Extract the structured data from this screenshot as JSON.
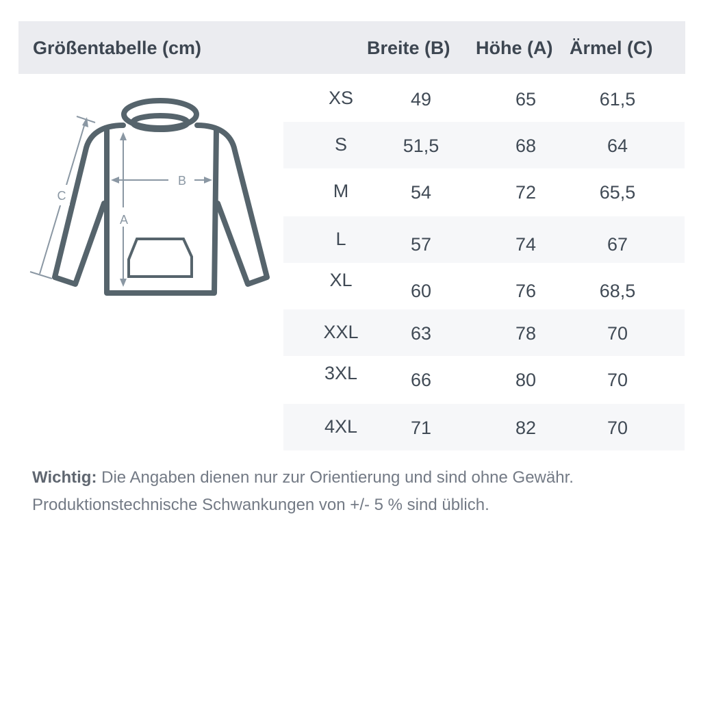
{
  "header": {
    "title": "Größentabelle (cm)",
    "columns": [
      "Breite (B)",
      "Höhe (A)",
      "Ärmel (C)"
    ]
  },
  "rows": [
    {
      "size": "XS",
      "breite": "49",
      "hoehe": "65",
      "aermel": "61,5"
    },
    {
      "size": "S",
      "breite": "51,5",
      "hoehe": "68",
      "aermel": "64"
    },
    {
      "size": "M",
      "breite": "54",
      "hoehe": "72",
      "aermel": "65,5"
    },
    {
      "size": "L",
      "breite": "57",
      "hoehe": "74",
      "aermel": "67"
    },
    {
      "size": "XL",
      "breite": "60",
      "hoehe": "76",
      "aermel": "68,5"
    },
    {
      "size": "XXL",
      "breite": "63",
      "hoehe": "78",
      "aermel": "70"
    },
    {
      "size": "3XL",
      "breite": "66",
      "hoehe": "80",
      "aermel": "70"
    },
    {
      "size": "4XL",
      "breite": "71",
      "hoehe": "82",
      "aermel": "70"
    }
  ],
  "diagram": {
    "label_a": "A",
    "label_b": "B",
    "label_c": "C",
    "icon": "hoodie-icon"
  },
  "note": {
    "label": "Wichtig:",
    "line1": " Die Angaben dienen nur zur Orientierung und sind ohne Gewähr.",
    "line2": "Produktionstechnische Schwankungen von +/- 5 % sind üblich."
  },
  "colors": {
    "header_bg": "#ebecf0",
    "stripe": "#f6f7f9",
    "outline": "#56646c",
    "measure": "#8a97a3"
  }
}
